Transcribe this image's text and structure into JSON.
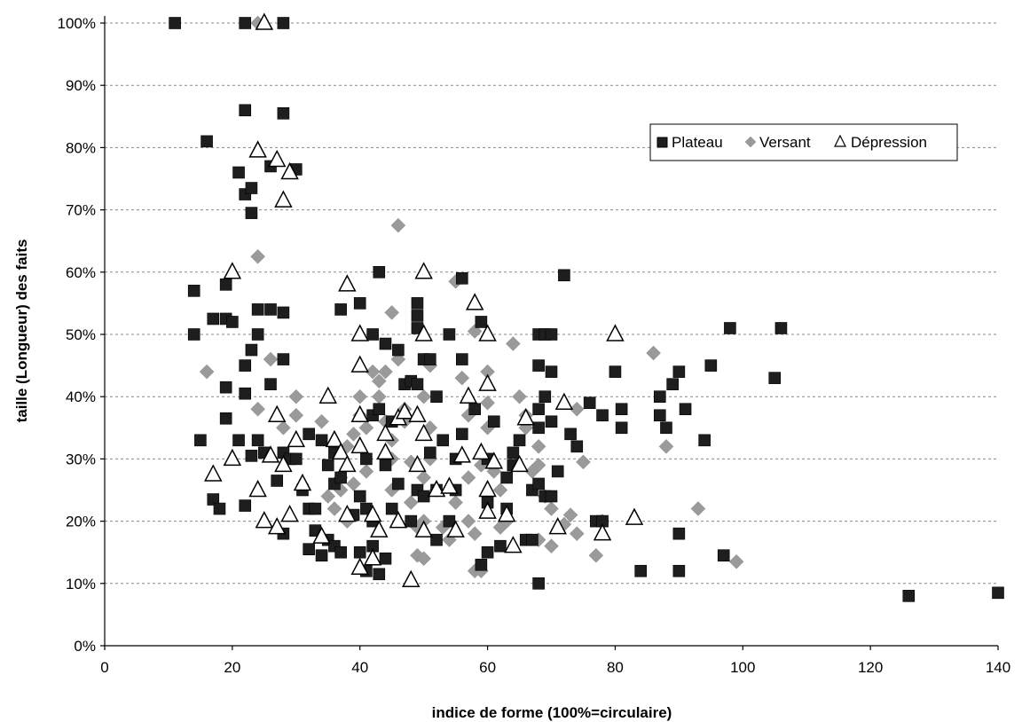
{
  "chart_data": {
    "type": "scatter",
    "title": "",
    "xlabel": "indice de forme (100%=circulaire)",
    "ylabel": "taille (Longueur) des faits",
    "xlim": [
      0,
      140
    ],
    "ylim": [
      0,
      100
    ],
    "x_ticks": [
      0,
      20,
      40,
      60,
      80,
      100,
      120,
      140
    ],
    "x_tick_labels": [
      "0",
      "20",
      "40",
      "60",
      "80",
      "100",
      "120",
      "140"
    ],
    "y_ticks": [
      0,
      10,
      20,
      30,
      40,
      50,
      60,
      70,
      80,
      90,
      100
    ],
    "y_tick_labels": [
      "0%",
      "10%",
      "20%",
      "30%",
      "40%",
      "50%",
      "60%",
      "70%",
      "80%",
      "90%",
      "100%"
    ],
    "grid": "horizontal dashed",
    "legend_position": "top-right",
    "colors": {
      "plateau": "#1e1e1e",
      "versant": "#9a9a9a",
      "depression": "#000000"
    },
    "series": [
      {
        "name": "Plateau",
        "marker": "square",
        "points": [
          [
            11,
            100
          ],
          [
            22,
            100
          ],
          [
            28,
            100
          ],
          [
            22,
            86
          ],
          [
            28,
            85.5
          ],
          [
            16,
            81
          ],
          [
            21,
            76
          ],
          [
            22,
            72.5
          ],
          [
            23,
            73.5
          ],
          [
            23,
            69.5
          ],
          [
            26,
            77
          ],
          [
            30,
            76.5
          ],
          [
            14,
            57
          ],
          [
            14,
            50
          ],
          [
            17,
            52.5
          ],
          [
            19,
            52.5
          ],
          [
            20,
            52
          ],
          [
            19,
            58
          ],
          [
            24,
            54
          ],
          [
            26,
            54
          ],
          [
            28,
            53.5
          ],
          [
            24,
            50
          ],
          [
            23,
            47.5
          ],
          [
            22,
            45
          ],
          [
            26,
            42
          ],
          [
            28,
            46
          ],
          [
            22,
            40.5
          ],
          [
            19,
            41.5
          ],
          [
            19,
            36.5
          ],
          [
            15,
            33
          ],
          [
            21,
            33
          ],
          [
            23,
            30.5
          ],
          [
            24,
            33
          ],
          [
            25,
            31
          ],
          [
            28,
            31
          ],
          [
            27,
            26.5
          ],
          [
            22,
            22.5
          ],
          [
            17,
            23.5
          ],
          [
            18,
            22
          ],
          [
            28,
            18
          ],
          [
            32,
            22
          ],
          [
            33,
            22
          ],
          [
            31,
            25
          ],
          [
            29,
            30
          ],
          [
            30,
            30
          ],
          [
            32,
            34
          ],
          [
            34,
            33
          ],
          [
            35,
            29
          ],
          [
            36,
            31
          ],
          [
            36,
            26
          ],
          [
            37,
            27
          ],
          [
            33,
            18.5
          ],
          [
            35,
            17
          ],
          [
            36,
            16
          ],
          [
            37,
            15
          ],
          [
            34,
            14.5
          ],
          [
            32,
            15.5
          ],
          [
            39,
            21
          ],
          [
            40,
            24
          ],
          [
            41,
            22
          ],
          [
            42,
            20
          ],
          [
            40,
            15
          ],
          [
            41,
            12
          ],
          [
            42,
            16
          ],
          [
            43,
            11.5
          ],
          [
            44,
            14
          ],
          [
            41,
            30
          ],
          [
            42,
            37
          ],
          [
            43,
            38
          ],
          [
            45,
            36
          ],
          [
            44,
            29
          ],
          [
            46,
            26
          ],
          [
            45,
            22
          ],
          [
            48,
            20
          ],
          [
            49,
            25
          ],
          [
            50,
            24
          ],
          [
            51,
            31
          ],
          [
            47,
            42
          ],
          [
            48,
            42.5
          ],
          [
            49,
            42
          ],
          [
            46,
            47.5
          ],
          [
            49,
            53
          ],
          [
            49,
            51
          ],
          [
            49,
            55
          ],
          [
            43,
            60
          ],
          [
            44,
            48.5
          ],
          [
            40,
            55
          ],
          [
            42,
            50
          ],
          [
            37,
            54
          ],
          [
            50,
            46
          ],
          [
            51,
            46
          ],
          [
            52,
            40
          ],
          [
            53,
            33
          ],
          [
            52,
            25
          ],
          [
            52,
            17
          ],
          [
            54,
            20
          ],
          [
            55,
            25
          ],
          [
            55,
            30
          ],
          [
            56,
            34
          ],
          [
            54,
            50
          ],
          [
            56,
            46
          ],
          [
            58,
            38
          ],
          [
            56,
            59
          ],
          [
            59,
            52
          ],
          [
            61,
            36
          ],
          [
            60,
            30
          ],
          [
            60,
            23
          ],
          [
            60,
            15
          ],
          [
            59,
            13
          ],
          [
            62,
            16
          ],
          [
            63,
            22
          ],
          [
            64,
            29
          ],
          [
            64,
            31
          ],
          [
            65,
            33
          ],
          [
            63,
            27
          ],
          [
            66,
            17
          ],
          [
            67,
            17
          ],
          [
            67,
            25
          ],
          [
            68,
            26
          ],
          [
            69,
            24
          ],
          [
            70,
            24
          ],
          [
            68,
            35
          ],
          [
            68,
            38
          ],
          [
            68,
            45
          ],
          [
            69,
            40
          ],
          [
            70,
            36
          ],
          [
            70,
            44
          ],
          [
            68,
            50
          ],
          [
            69,
            50
          ],
          [
            70,
            50
          ],
          [
            71,
            28
          ],
          [
            72,
            59.5
          ],
          [
            73,
            34
          ],
          [
            74,
            32
          ],
          [
            76,
            39
          ],
          [
            78,
            37
          ],
          [
            77,
            20
          ],
          [
            78,
            20
          ],
          [
            81,
            35
          ],
          [
            81,
            38
          ],
          [
            80,
            44
          ],
          [
            87,
            37
          ],
          [
            87,
            40
          ],
          [
            88,
            35
          ],
          [
            89,
            42
          ],
          [
            90,
            44
          ],
          [
            91,
            38
          ],
          [
            94,
            33
          ],
          [
            95,
            45
          ],
          [
            98,
            51
          ],
          [
            90,
            18
          ],
          [
            90,
            12
          ],
          [
            84,
            12
          ],
          [
            97,
            14.5
          ],
          [
            105,
            43
          ],
          [
            106,
            51
          ],
          [
            126,
            8
          ],
          [
            140,
            8.5
          ],
          [
            68,
            10
          ]
        ]
      },
      {
        "name": "Versant",
        "marker": "diamond",
        "points": [
          [
            24,
            100
          ],
          [
            24,
            62.5
          ],
          [
            16,
            44
          ],
          [
            26,
            46
          ],
          [
            24,
            38
          ],
          [
            28,
            35
          ],
          [
            30,
            40
          ],
          [
            30,
            37
          ],
          [
            34,
            36
          ],
          [
            35,
            24
          ],
          [
            36,
            22
          ],
          [
            37,
            25
          ],
          [
            37,
            27
          ],
          [
            38,
            20
          ],
          [
            38,
            32
          ],
          [
            39,
            34
          ],
          [
            39,
            26
          ],
          [
            40,
            40
          ],
          [
            40,
            37
          ],
          [
            41,
            35
          ],
          [
            41,
            28
          ],
          [
            42,
            44
          ],
          [
            43,
            42.5
          ],
          [
            43,
            40
          ],
          [
            44,
            44
          ],
          [
            44,
            36
          ],
          [
            45,
            33
          ],
          [
            45,
            25
          ],
          [
            45,
            30
          ],
          [
            46,
            67.5
          ],
          [
            45,
            53.5
          ],
          [
            46,
            46
          ],
          [
            47,
            36
          ],
          [
            47,
            38
          ],
          [
            48,
            29.5
          ],
          [
            48,
            23
          ],
          [
            49,
            19
          ],
          [
            49,
            14.5
          ],
          [
            50,
            14
          ],
          [
            50,
            20
          ],
          [
            50,
            27
          ],
          [
            51,
            30
          ],
          [
            51,
            35
          ],
          [
            50,
            40
          ],
          [
            51,
            45
          ],
          [
            52,
            25
          ],
          [
            53,
            19
          ],
          [
            54,
            17
          ],
          [
            55,
            23
          ],
          [
            55,
            58.5
          ],
          [
            56,
            43
          ],
          [
            57,
            37
          ],
          [
            57,
            27
          ],
          [
            57,
            20
          ],
          [
            58,
            18
          ],
          [
            58,
            12
          ],
          [
            59,
            12
          ],
          [
            59,
            29
          ],
          [
            60,
            35
          ],
          [
            60,
            39
          ],
          [
            60,
            44
          ],
          [
            58,
            50.5
          ],
          [
            61,
            28
          ],
          [
            62,
            25
          ],
          [
            62,
            19
          ],
          [
            63,
            20
          ],
          [
            64,
            48.5
          ],
          [
            65,
            40
          ],
          [
            66,
            37
          ],
          [
            66,
            35
          ],
          [
            67,
            28
          ],
          [
            68,
            29
          ],
          [
            68,
            32
          ],
          [
            68,
            17
          ],
          [
            69,
            24
          ],
          [
            70,
            16
          ],
          [
            70,
            22
          ],
          [
            72,
            19.5
          ],
          [
            73,
            21
          ],
          [
            74,
            18
          ],
          [
            74,
            38
          ],
          [
            75,
            29.5
          ],
          [
            77,
            14.5
          ],
          [
            78,
            20
          ],
          [
            86,
            47
          ],
          [
            88,
            32
          ],
          [
            93,
            22
          ],
          [
            99,
            13.5
          ]
        ]
      },
      {
        "name": "Dépression",
        "marker": "triangle",
        "points": [
          [
            25,
            100
          ],
          [
            24,
            79.5
          ],
          [
            27,
            78
          ],
          [
            29,
            76
          ],
          [
            28,
            71.5
          ],
          [
            20,
            60
          ],
          [
            17,
            27.5
          ],
          [
            20,
            30
          ],
          [
            24,
            25
          ],
          [
            25,
            20
          ],
          [
            26,
            30.5
          ],
          [
            27,
            19
          ],
          [
            29,
            21
          ],
          [
            28,
            29
          ],
          [
            27,
            37
          ],
          [
            30,
            33
          ],
          [
            31,
            26
          ],
          [
            34,
            17.5
          ],
          [
            35,
            40
          ],
          [
            36,
            33
          ],
          [
            37,
            31
          ],
          [
            38,
            58
          ],
          [
            38,
            29
          ],
          [
            38,
            21
          ],
          [
            40,
            12.5
          ],
          [
            40,
            37
          ],
          [
            40,
            45
          ],
          [
            40,
            50
          ],
          [
            40,
            32
          ],
          [
            42,
            21
          ],
          [
            42,
            14
          ],
          [
            43,
            18.5
          ],
          [
            44,
            31
          ],
          [
            44,
            34
          ],
          [
            46,
            20
          ],
          [
            46,
            36.5
          ],
          [
            47,
            37.5
          ],
          [
            48,
            10.5
          ],
          [
            49,
            29
          ],
          [
            49,
            37
          ],
          [
            50,
            34
          ],
          [
            50,
            50
          ],
          [
            50,
            60
          ],
          [
            50,
            18.5
          ],
          [
            52,
            25
          ],
          [
            54,
            25.5
          ],
          [
            55,
            18.5
          ],
          [
            56,
            30.5
          ],
          [
            57,
            40
          ],
          [
            58,
            55
          ],
          [
            59,
            31
          ],
          [
            60,
            42
          ],
          [
            60,
            25
          ],
          [
            60,
            21.5
          ],
          [
            60,
            50
          ],
          [
            61,
            29.5
          ],
          [
            63,
            21
          ],
          [
            64,
            16
          ],
          [
            65,
            29
          ],
          [
            66,
            36.5
          ],
          [
            71,
            19
          ],
          [
            72,
            39
          ],
          [
            78,
            18
          ],
          [
            80,
            50
          ],
          [
            83,
            20.5
          ]
        ]
      }
    ]
  }
}
